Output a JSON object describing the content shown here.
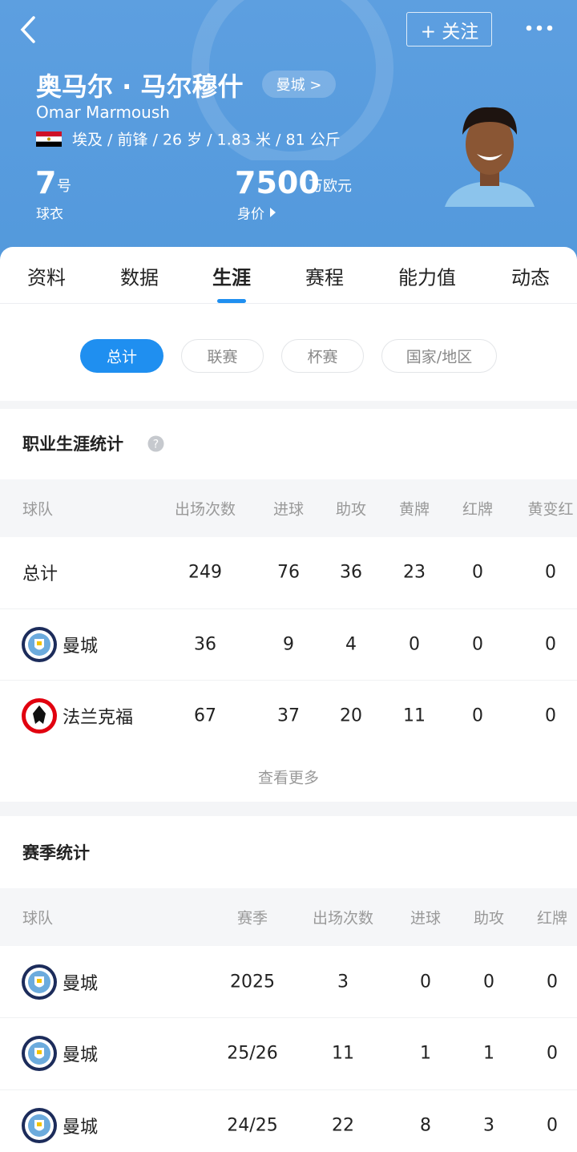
{
  "header": {
    "follow": "+ 关注",
    "name": "奥马尔 · 马尔穆什",
    "club": "曼城 >",
    "name_en": "Omar Marmoush",
    "info": "埃及 / 前锋 / 26 岁 / 1.83 米 / 81 公斤",
    "number": "7",
    "number_unit": "号",
    "number_label": "球衣",
    "value": "7500",
    "value_unit": "万欧元",
    "value_label": "身价"
  },
  "tabs": [
    "资料",
    "数据",
    "生涯",
    "赛程",
    "能力值",
    "动态"
  ],
  "filters": [
    "总计",
    "联赛",
    "杯赛",
    "国家/地区"
  ],
  "career": {
    "title": "职业生涯统计",
    "columns": [
      "球队",
      "出场次数",
      "进球",
      "助攻",
      "黄牌",
      "红牌",
      "黄变红"
    ],
    "rows": [
      [
        "总计",
        249,
        76,
        36,
        23,
        0,
        0
      ],
      [
        "曼城",
        36,
        9,
        4,
        0,
        0,
        0
      ],
      [
        "法兰克福",
        67,
        37,
        20,
        11,
        0,
        0
      ]
    ],
    "more": "查看更多"
  },
  "season": {
    "title": "赛季统计",
    "columns": [
      "球队",
      "赛季",
      "出场次数",
      "进球",
      "助攻",
      "红牌"
    ],
    "rows": [
      [
        "曼城",
        "2025",
        3,
        0,
        0,
        0
      ],
      [
        "曼城",
        "25/26",
        11,
        1,
        1,
        0
      ],
      [
        "曼城",
        "24/25",
        22,
        8,
        3,
        0
      ]
    ]
  }
}
